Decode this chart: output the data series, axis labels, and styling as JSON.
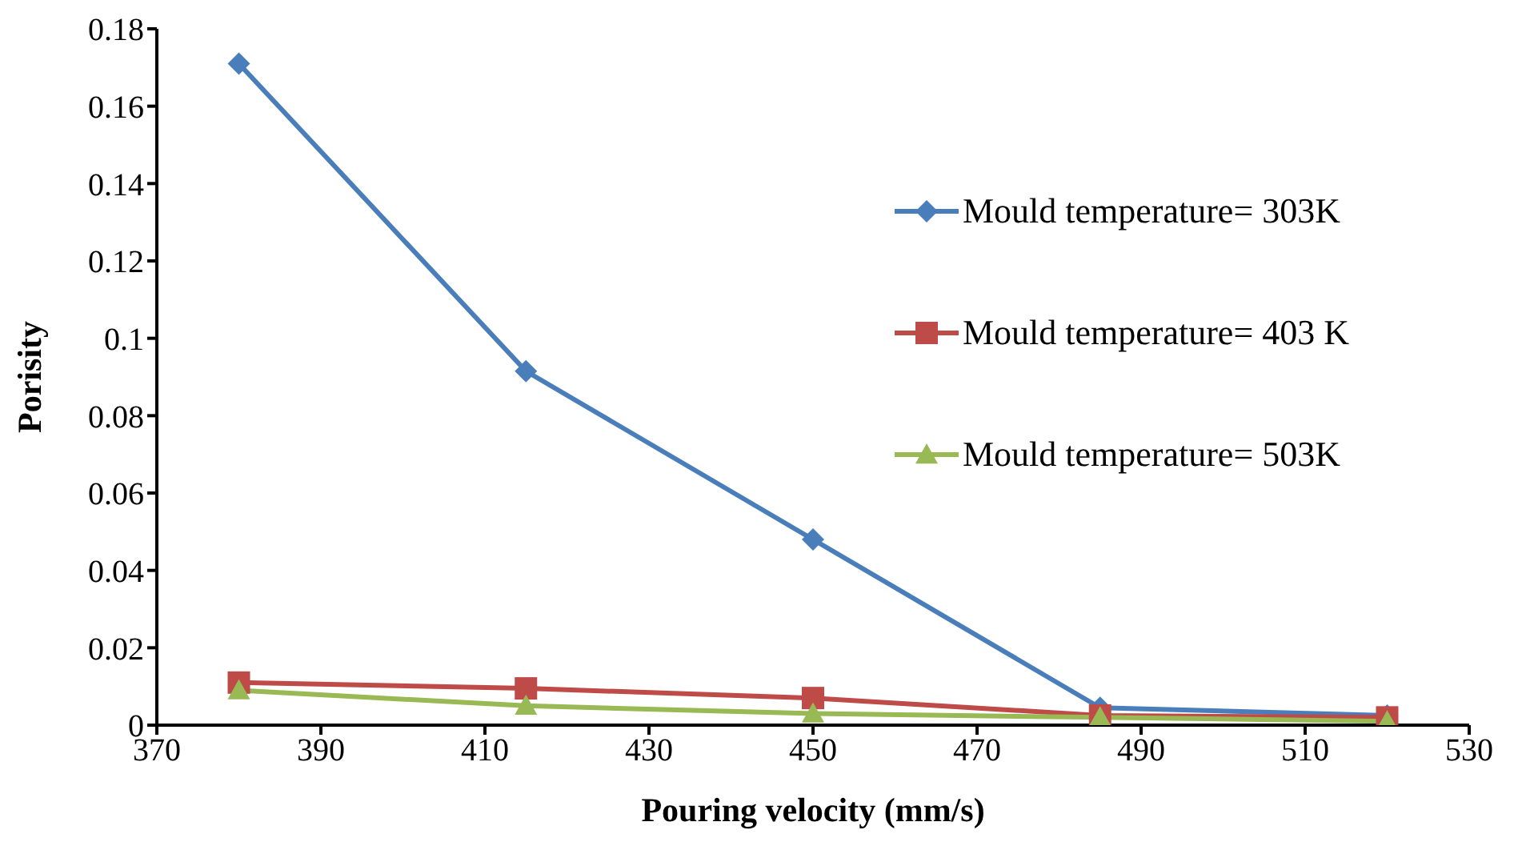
{
  "chart_data": {
    "type": "line",
    "xlabel": "Pouring velocity (mm/s)",
    "ylabel": "Porisity",
    "x": [
      380,
      415,
      450,
      485,
      520
    ],
    "series": [
      {
        "name": "Mould temperature= 303K",
        "color": "#4a7ebb",
        "marker": "diamond",
        "values": [
          0.171,
          0.0915,
          0.048,
          0.0045,
          0.0025
        ]
      },
      {
        "name": "Mould temperature= 403 K",
        "color": "#be4b48",
        "marker": "square",
        "values": [
          0.011,
          0.0095,
          0.007,
          0.0025,
          0.002
        ]
      },
      {
        "name": "Mould temperature= 503K",
        "color": "#98b954",
        "marker": "triangle",
        "values": [
          0.009,
          0.005,
          0.003,
          0.002,
          0.001
        ]
      }
    ],
    "xlim": [
      370,
      530
    ],
    "xticks": [
      370,
      390,
      410,
      430,
      450,
      470,
      490,
      510,
      530
    ],
    "ylim": [
      0,
      0.18
    ],
    "yticks": [
      0,
      0.02,
      0.04,
      0.06,
      0.08,
      0.1,
      0.12,
      0.14,
      0.16,
      0.18
    ],
    "grid": false,
    "legend": "top right"
  }
}
